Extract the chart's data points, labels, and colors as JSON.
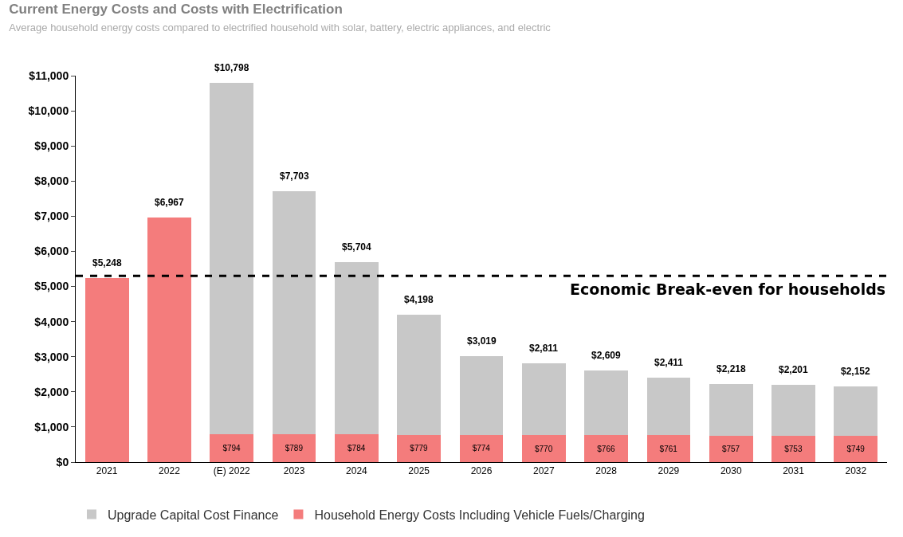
{
  "chart_data": {
    "type": "bar",
    "title": "Current Energy Costs and Costs with Electrification",
    "subtitle": "Average household energy costs compared to electrified household with solar, battery, electric appliances, and electric",
    "categories": [
      "2021",
      "2022",
      "(E) 2022",
      "2023",
      "2024",
      "2025",
      "2026",
      "2027",
      "2028",
      "2029",
      "2030",
      "2031",
      "2032"
    ],
    "stacked": true,
    "series": [
      {
        "name": "Household Energy Costs Including Vehicle Fuels/Charging",
        "color": "#f47c7c",
        "values": [
          5248,
          6967,
          794,
          789,
          784,
          779,
          774,
          770,
          766,
          761,
          757,
          753,
          749
        ],
        "value_labels": [
          null,
          null,
          "$794",
          "$789",
          "$784",
          "$779",
          "$774",
          "$770",
          "$766",
          "$761",
          "$757",
          "$753",
          "$749"
        ]
      },
      {
        "name": "Upgrade Capital Cost Finance",
        "color": "#c8c8c8",
        "values": [
          null,
          null,
          10004,
          6914,
          4920,
          3419,
          2245,
          2041,
          1843,
          1650,
          1461,
          1448,
          1403
        ]
      }
    ],
    "totals": [
      "$5,248",
      "$6,967",
      "$10,798",
      "$7,703",
      "$5,704",
      "$4,198",
      "$3,019",
      "$2,811",
      "$2,609",
      "$2,411",
      "$2,218",
      "$2,201",
      "$2,152"
    ],
    "ylim": [
      0,
      11000
    ],
    "yticks": [
      {
        "value": 0,
        "label": "$0"
      },
      {
        "value": 1000,
        "label": "$1,000"
      },
      {
        "value": 2000,
        "label": "$2,000"
      },
      {
        "value": 3000,
        "label": "$3,000"
      },
      {
        "value": 4000,
        "label": "$4,000"
      },
      {
        "value": 5000,
        "label": "$5,000"
      },
      {
        "value": 6000,
        "label": "$6,000"
      },
      {
        "value": 7000,
        "label": "$7,000"
      },
      {
        "value": 8000,
        "label": "$8,000"
      },
      {
        "value": 9000,
        "label": "$9,000"
      },
      {
        "value": 10000,
        "label": "$10,000"
      },
      {
        "value": 11000,
        "label": "$11,000"
      }
    ],
    "ref_lines": [
      {
        "axis": "y",
        "value": 5300,
        "label": "Economic Break-even for households",
        "color": "#000000",
        "line_style": "dashed"
      }
    ],
    "legend": "bottom"
  }
}
